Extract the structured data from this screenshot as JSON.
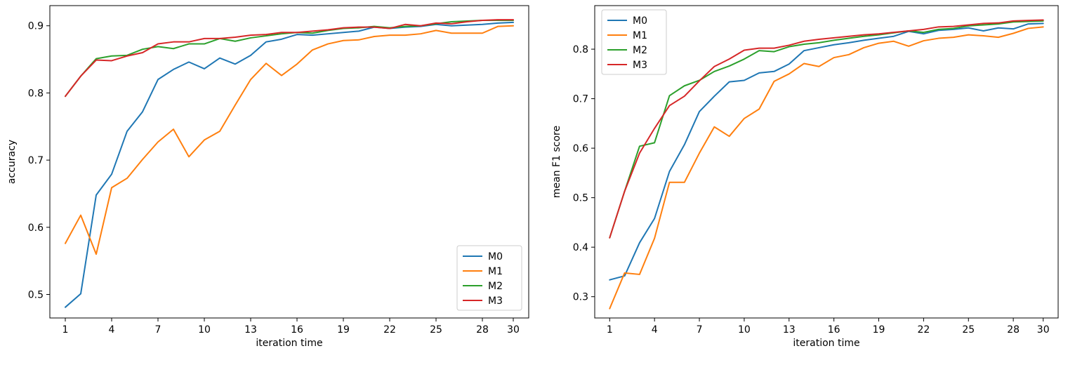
{
  "chart_data": [
    {
      "type": "line",
      "xlabel": "iteration time",
      "ylabel": "accuracy",
      "xlim": [
        0,
        31
      ],
      "ylim": [
        0.465,
        0.93
      ],
      "xticks": [
        1,
        4,
        7,
        10,
        13,
        16,
        19,
        22,
        25,
        28,
        30
      ],
      "yticks": [
        0.5,
        0.6,
        0.7,
        0.8,
        0.9
      ],
      "ytick_labels": [
        "0.5",
        "0.6",
        "0.7",
        "0.8",
        "0.9"
      ],
      "legend_position": "lower-right",
      "grid": false,
      "x": [
        1,
        2,
        3,
        4,
        5,
        6,
        7,
        8,
        9,
        10,
        11,
        12,
        13,
        14,
        15,
        16,
        17,
        18,
        19,
        20,
        21,
        22,
        23,
        24,
        25,
        26,
        27,
        28,
        29,
        30
      ],
      "series": [
        {
          "name": "M0",
          "color": "#1f77b4",
          "values": [
            0.481,
            0.501,
            0.648,
            0.679,
            0.743,
            0.772,
            0.82,
            0.835,
            0.846,
            0.836,
            0.852,
            0.843,
            0.856,
            0.876,
            0.88,
            0.887,
            0.886,
            0.888,
            0.89,
            0.892,
            0.898,
            0.896,
            0.898,
            0.899,
            0.902,
            0.9,
            0.901,
            0.902,
            0.904,
            0.905
          ]
        },
        {
          "name": "M1",
          "color": "#ff7f0e",
          "values": [
            0.576,
            0.618,
            0.56,
            0.659,
            0.673,
            0.701,
            0.727,
            0.746,
            0.705,
            0.73,
            0.743,
            0.782,
            0.82,
            0.844,
            0.826,
            0.843,
            0.864,
            0.873,
            0.878,
            0.879,
            0.884,
            0.886,
            0.886,
            0.888,
            0.893,
            0.889,
            0.889,
            0.889,
            0.899,
            0.9
          ]
        },
        {
          "name": "M2",
          "color": "#2ca02c",
          "values": [
            0.795,
            0.825,
            0.851,
            0.855,
            0.856,
            0.865,
            0.869,
            0.866,
            0.873,
            0.873,
            0.881,
            0.877,
            0.882,
            0.885,
            0.888,
            0.89,
            0.889,
            0.893,
            0.896,
            0.897,
            0.899,
            0.897,
            0.899,
            0.9,
            0.903,
            0.906,
            0.907,
            0.908,
            0.908,
            0.908
          ]
        },
        {
          "name": "M3",
          "color": "#d62728",
          "values": [
            0.795,
            0.825,
            0.849,
            0.848,
            0.855,
            0.86,
            0.873,
            0.876,
            0.876,
            0.881,
            0.881,
            0.883,
            0.886,
            0.887,
            0.89,
            0.89,
            0.892,
            0.894,
            0.897,
            0.898,
            0.898,
            0.896,
            0.902,
            0.9,
            0.904,
            0.903,
            0.906,
            0.908,
            0.909,
            0.909
          ]
        }
      ]
    },
    {
      "type": "line",
      "xlabel": "iteration time",
      "ylabel": "mean F1 score",
      "xlim": [
        0,
        31
      ],
      "ylim": [
        0.257,
        0.888
      ],
      "xticks": [
        1,
        4,
        7,
        10,
        13,
        16,
        19,
        22,
        25,
        28,
        30
      ],
      "yticks": [
        0.3,
        0.4,
        0.5,
        0.6,
        0.7,
        0.8
      ],
      "ytick_labels": [
        "0.3",
        "0.4",
        "0.5",
        "0.6",
        "0.7",
        "0.8"
      ],
      "legend_position": "upper-left",
      "grid": false,
      "x": [
        1,
        2,
        3,
        4,
        5,
        6,
        7,
        8,
        9,
        10,
        11,
        12,
        13,
        14,
        15,
        16,
        17,
        18,
        19,
        20,
        21,
        22,
        23,
        24,
        25,
        26,
        27,
        28,
        29,
        30
      ],
      "series": [
        {
          "name": "M0",
          "color": "#1f77b4",
          "values": [
            0.334,
            0.342,
            0.409,
            0.458,
            0.553,
            0.607,
            0.674,
            0.705,
            0.734,
            0.737,
            0.752,
            0.755,
            0.77,
            0.797,
            0.803,
            0.809,
            0.813,
            0.818,
            0.822,
            0.826,
            0.836,
            0.831,
            0.838,
            0.84,
            0.843,
            0.837,
            0.843,
            0.841,
            0.851,
            0.852
          ]
        },
        {
          "name": "M1",
          "color": "#ff7f0e",
          "values": [
            0.276,
            0.348,
            0.345,
            0.418,
            0.531,
            0.531,
            0.59,
            0.643,
            0.624,
            0.66,
            0.679,
            0.735,
            0.75,
            0.771,
            0.765,
            0.783,
            0.789,
            0.803,
            0.812,
            0.816,
            0.806,
            0.817,
            0.822,
            0.824,
            0.829,
            0.827,
            0.824,
            0.832,
            0.842,
            0.845
          ]
        },
        {
          "name": "M2",
          "color": "#2ca02c",
          "values": [
            0.419,
            0.513,
            0.604,
            0.611,
            0.706,
            0.726,
            0.737,
            0.755,
            0.766,
            0.78,
            0.797,
            0.795,
            0.805,
            0.81,
            0.813,
            0.818,
            0.822,
            0.826,
            0.829,
            0.833,
            0.837,
            0.834,
            0.84,
            0.842,
            0.847,
            0.849,
            0.851,
            0.855,
            0.856,
            0.857
          ]
        },
        {
          "name": "M3",
          "color": "#d62728",
          "values": [
            0.419,
            0.513,
            0.59,
            0.64,
            0.686,
            0.705,
            0.736,
            0.765,
            0.78,
            0.798,
            0.802,
            0.802,
            0.808,
            0.816,
            0.82,
            0.823,
            0.826,
            0.829,
            0.831,
            0.834,
            0.837,
            0.84,
            0.845,
            0.846,
            0.849,
            0.852,
            0.853,
            0.857,
            0.858,
            0.859
          ]
        }
      ]
    }
  ]
}
